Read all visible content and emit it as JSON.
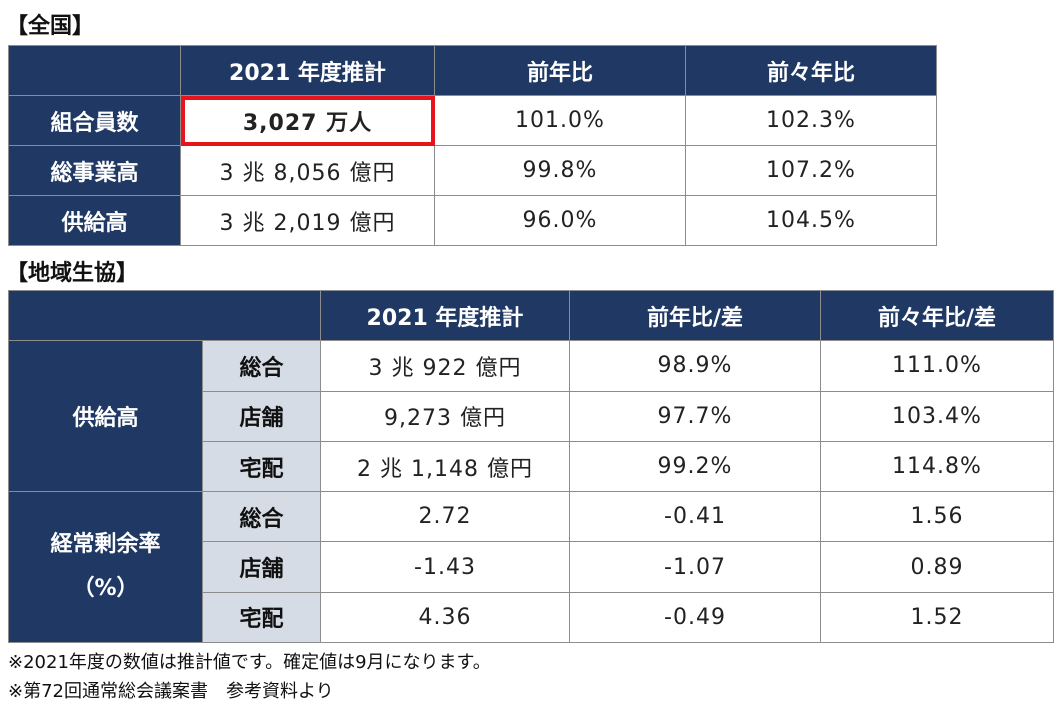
{
  "national": {
    "heading": "【全国】",
    "headers": [
      "",
      "2021 年度推計",
      "前年比",
      "前々年比"
    ],
    "rows": [
      {
        "label": "組合員数",
        "estimate": "3,027 万人",
        "yoy": "101.0%",
        "yoy2": "102.3%"
      },
      {
        "label": "総事業高",
        "estimate": "3 兆 8,056 億円",
        "yoy": "99.8%",
        "yoy2": "107.2%"
      },
      {
        "label": "供給高",
        "estimate": "3 兆 2,019 億円",
        "yoy": "96.0%",
        "yoy2": "104.5%"
      }
    ]
  },
  "regional": {
    "heading": "【地域生協】",
    "headers": [
      "",
      "2021 年度推計",
      "前年比/差",
      "前々年比/差"
    ],
    "supply": {
      "label": "供給高",
      "rows": [
        {
          "sub": "総合",
          "estimate": "3 兆 922 億円",
          "yoy": "98.9%",
          "yoy2": "111.0%"
        },
        {
          "sub": "店舗",
          "estimate": "9,273 億円",
          "yoy": "97.7%",
          "yoy2": "103.4%"
        },
        {
          "sub": "宅配",
          "estimate": "2 兆 1,148 億円",
          "yoy": "99.2%",
          "yoy2": "114.8%"
        }
      ]
    },
    "margin": {
      "label_line1": "経常剰余率",
      "label_line2": "（%）",
      "rows": [
        {
          "sub": "総合",
          "estimate": "2.72",
          "yoy": "-0.41",
          "yoy2": "1.56"
        },
        {
          "sub": "店舗",
          "estimate": "-1.43",
          "yoy": "-1.07",
          "yoy2": "0.89"
        },
        {
          "sub": "宅配",
          "estimate": "4.36",
          "yoy": "-0.49",
          "yoy2": "1.52"
        }
      ]
    }
  },
  "notes": [
    "※2021年度の数値は推計値です。確定値は9月になります。",
    "※第72回通常総会議案書　参考資料より"
  ],
  "colors": {
    "header": "#1f3864",
    "subheader": "#d6dce5",
    "highlight": "#e8141c"
  }
}
